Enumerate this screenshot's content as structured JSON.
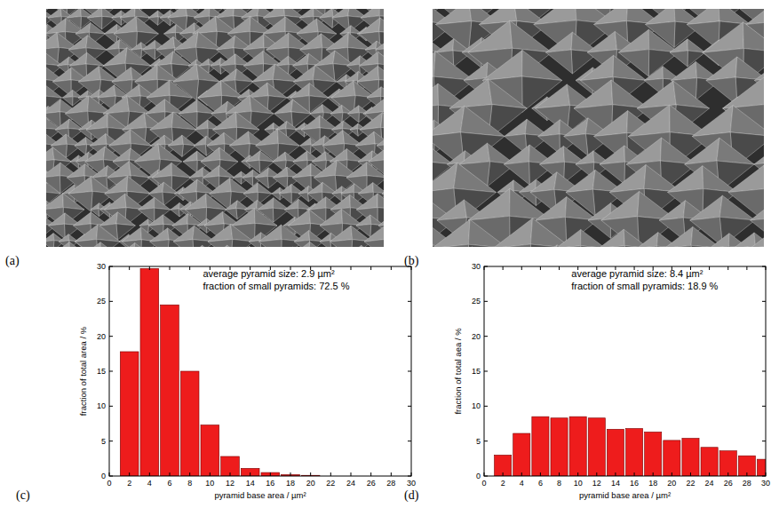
{
  "images": [
    {
      "panel_label": "(a)"
    },
    {
      "panel_label": "(b)"
    }
  ],
  "chart_data": [
    {
      "type": "histogram",
      "panel_label": "(c)",
      "annotations": [
        "average pyramid size: 2.9 µm²",
        "fraction of small pyramids: 72.5 %"
      ],
      "x_label": "pyramid base area / µm²",
      "y_label": "fraction of total area / %",
      "bins": [
        1,
        3,
        5,
        7,
        9,
        11,
        13,
        15,
        17,
        19,
        21,
        23,
        25,
        27,
        29
      ],
      "values": [
        17.8,
        29.7,
        24.5,
        15.0,
        7.3,
        2.8,
        1.1,
        0.5,
        0.2,
        0.1,
        0,
        0,
        0,
        0
      ],
      "color": "#ee1c1c",
      "xlim": [
        0,
        30
      ],
      "ylim": [
        0,
        30
      ],
      "xticks": [
        0,
        2,
        4,
        6,
        8,
        10,
        12,
        14,
        16,
        18,
        20,
        22,
        24,
        26,
        28,
        30
      ],
      "yticks": [
        0,
        5,
        10,
        15,
        20,
        25,
        30
      ]
    },
    {
      "type": "histogram",
      "panel_label": "(d)",
      "annotations": [
        "average pyramid size: 8.4 µm²",
        "fraction of small pyramids: 18.9 %"
      ],
      "x_label": "pyramid base area / µm²",
      "y_label": "fraction of total aea / %",
      "bins": [
        1,
        3,
        5,
        7,
        9,
        11,
        13,
        15,
        17,
        19,
        21,
        23,
        25,
        27,
        29,
        31
      ],
      "values": [
        3.0,
        6.1,
        8.5,
        8.3,
        8.5,
        8.3,
        6.7,
        6.8,
        6.3,
        5.1,
        5.4,
        4.1,
        3.6,
        2.9,
        2.4
      ],
      "color": "#ee1c1c",
      "xlim": [
        0,
        30
      ],
      "ylim": [
        0,
        30
      ],
      "xticks": [
        0,
        2,
        4,
        6,
        8,
        10,
        12,
        14,
        16,
        18,
        20,
        22,
        24,
        26,
        28,
        30
      ],
      "yticks": [
        0,
        5,
        10,
        15,
        20,
        25,
        30
      ]
    }
  ]
}
